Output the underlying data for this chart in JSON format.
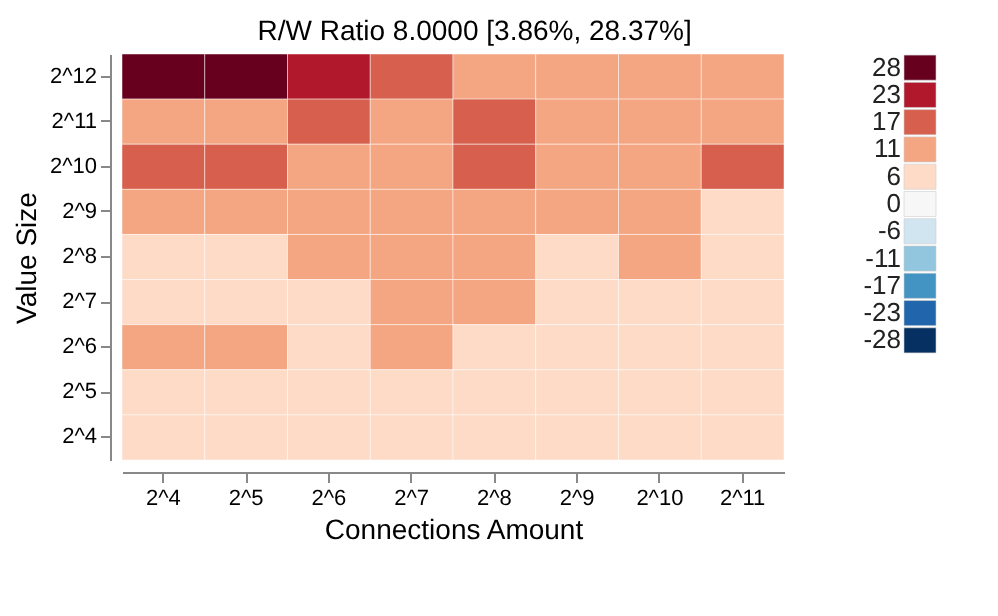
{
  "chart_data": {
    "type": "heatmap",
    "title": "R/W Ratio 8.0000 [3.86%, 28.37%]",
    "xlabel": "Connections Amount",
    "ylabel": "Value Size",
    "categories": [
      "2^4",
      "2^5",
      "2^6",
      "2^7",
      "2^8",
      "2^9",
      "2^10",
      "2^11"
    ],
    "y_categories": [
      "2^12",
      "2^11",
      "2^10",
      "2^9",
      "2^8",
      "2^7",
      "2^6",
      "2^5",
      "2^4"
    ],
    "cells": [
      [
        28,
        28,
        23,
        17,
        11,
        11,
        11,
        11
      ],
      [
        11,
        11,
        17,
        11,
        17,
        11,
        11,
        11
      ],
      [
        17,
        17,
        11,
        11,
        17,
        11,
        11,
        17
      ],
      [
        11,
        11,
        11,
        11,
        11,
        11,
        11,
        6
      ],
      [
        6,
        6,
        11,
        11,
        11,
        6,
        11,
        6
      ],
      [
        6,
        6,
        6,
        11,
        11,
        6,
        6,
        6
      ],
      [
        11,
        11,
        6,
        11,
        6,
        6,
        6,
        6
      ],
      [
        6,
        6,
        6,
        6,
        6,
        6,
        6,
        6
      ],
      [
        6,
        6,
        6,
        6,
        6,
        6,
        6,
        6
      ]
    ],
    "cticks": [
      28,
      23,
      17,
      11,
      6,
      0,
      -6,
      -11,
      -17,
      -23,
      -28
    ],
    "colors": [
      "#67001f",
      "#b2182b",
      "#d6604d",
      "#f4a582",
      "#fddbc7",
      "#f7f7f7",
      "#d1e5f0",
      "#92c5de",
      "#4393c3",
      "#2166ac",
      "#053061"
    ],
    "grid": false
  }
}
